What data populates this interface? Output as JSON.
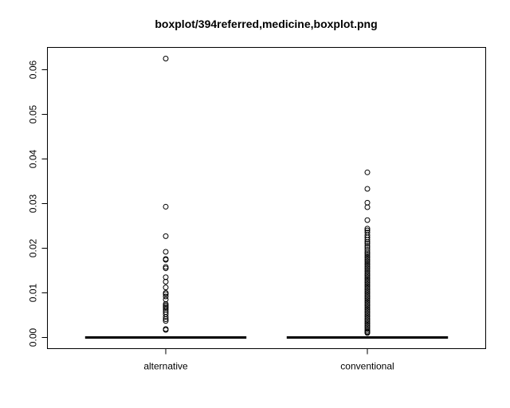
{
  "chart_data": {
    "type": "boxplot",
    "title": "boxplot/394referred,medicine,boxplot.png",
    "xlabel": "",
    "ylabel": "",
    "ylim": [
      -0.0025,
      0.065
    ],
    "yticks": [
      0.0,
      0.01,
      0.02,
      0.03,
      0.04,
      0.05,
      0.06
    ],
    "ytick_labels": [
      "0.00",
      "0.01",
      "0.02",
      "0.03",
      "0.04",
      "0.05",
      "0.06"
    ],
    "grid": false,
    "categories": [
      "alternative",
      "conventional"
    ],
    "series": [
      {
        "category": "alternative",
        "q1": 0,
        "median": 0,
        "q3": 0,
        "whisker_low": 0,
        "whisker_high": 0,
        "outliers": [
          0.0625,
          0.0293,
          0.0227,
          0.0192,
          0.0176,
          0.0174,
          0.0158,
          0.0155,
          0.0135,
          0.0125,
          0.0112,
          0.01,
          0.0097,
          0.0092,
          0.0085,
          0.0075,
          0.0072,
          0.0069,
          0.0066,
          0.0062,
          0.0057,
          0.0052,
          0.0046,
          0.0041,
          0.0037,
          0.0019,
          0.0017
        ]
      },
      {
        "category": "conventional",
        "q1": 0,
        "median": 0,
        "q3": 0,
        "whisker_low": 0,
        "whisker_high": 0,
        "outliers": [
          0.037,
          0.0333,
          0.0302,
          0.0292,
          0.0263,
          0.0244,
          0.024,
          0.0235,
          0.0229,
          0.0224,
          0.0219,
          0.0214,
          0.021,
          0.0205,
          0.0201,
          0.0196,
          0.0191,
          0.0187,
          0.0183,
          0.0179,
          0.0175,
          0.0171,
          0.0167,
          0.0163,
          0.0159,
          0.0155,
          0.0151,
          0.0147,
          0.0143,
          0.0139,
          0.0135,
          0.0131,
          0.0127,
          0.0123,
          0.0119,
          0.0115,
          0.0111,
          0.0107,
          0.0103,
          0.0099,
          0.0095,
          0.0091,
          0.0087,
          0.0083,
          0.0079,
          0.0075,
          0.0071,
          0.0067,
          0.0063,
          0.0059,
          0.0055,
          0.0051,
          0.0047,
          0.0043,
          0.0039,
          0.0035,
          0.0031,
          0.0027,
          0.0023,
          0.0019,
          0.0015,
          0.0012,
          0.001
        ]
      }
    ]
  }
}
